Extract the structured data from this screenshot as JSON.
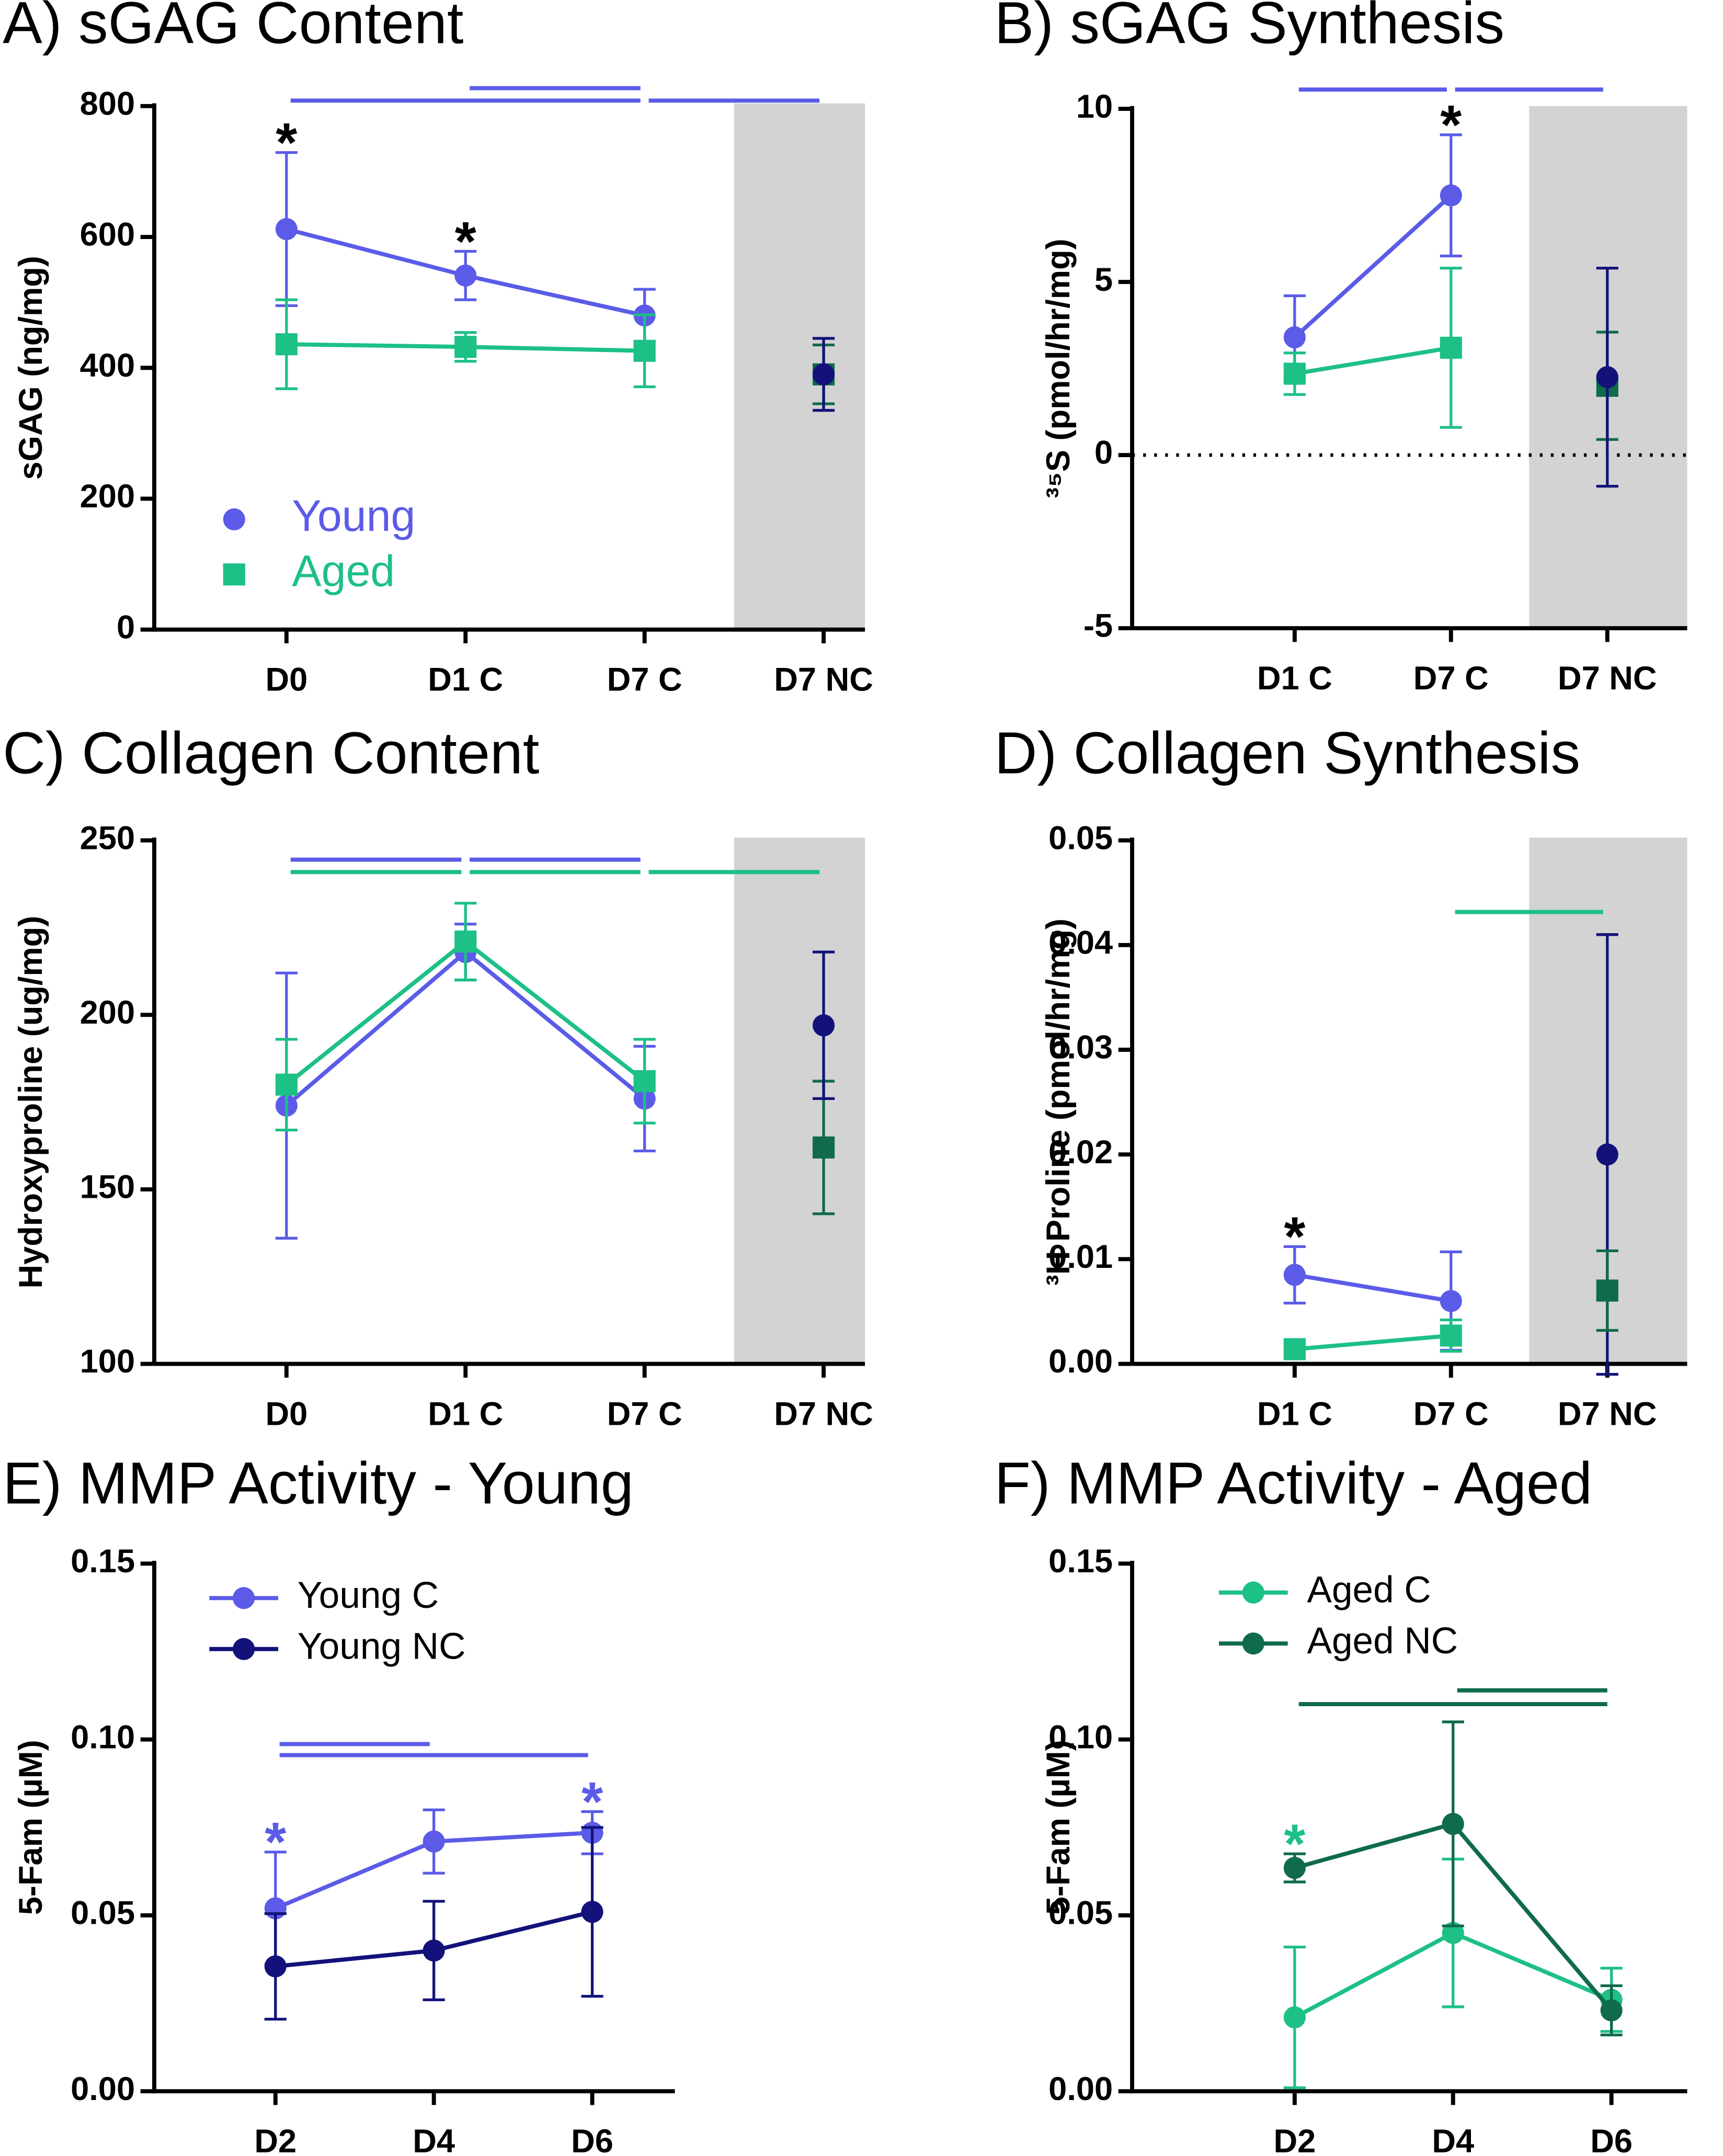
{
  "chart_data": [
    {
      "type": "line",
      "title": "A) sGAG Content",
      "ylabel": "sGAG (ng/mg)",
      "categories": [
        "D0",
        "D1 C",
        "D7 C",
        "D7 NC"
      ],
      "ylim": [
        0,
        800
      ],
      "yticks": [
        0,
        200,
        400,
        600,
        800
      ],
      "shade_last": true,
      "legend": "text",
      "series": [
        {
          "name": "Young",
          "color": "#5b5be8",
          "marker": "circle",
          "values": [
            612,
            541,
            480,
            null
          ],
          "errors": [
            117,
            37,
            40,
            null
          ]
        },
        {
          "name": "Aged",
          "color": "#1dc085",
          "marker": "square",
          "values": [
            436,
            432,
            426,
            null
          ],
          "errors": [
            68,
            22,
            55,
            null
          ]
        },
        {
          "color": "#0f6b4a",
          "marker": "square",
          "values": [
            null,
            null,
            null,
            390
          ],
          "errors": [
            null,
            null,
            null,
            45
          ]
        },
        {
          "color": "#12127a",
          "marker": "circle",
          "values": [
            null,
            null,
            null,
            390
          ],
          "errors": [
            null,
            null,
            null,
            55
          ]
        }
      ],
      "brackets": [
        {
          "from": "D0",
          "to": "D7 C",
          "color": "#5b5be8"
        },
        {
          "from": "D1 C",
          "to": "D7 C",
          "color": "#5b5be8"
        },
        {
          "from": "D7 C",
          "to": "D7 NC",
          "color": "#5b5be8"
        }
      ],
      "annotations": [
        {
          "text": "*",
          "category": "D0",
          "color": "#000000"
        },
        {
          "text": "*",
          "category": "D1 C",
          "color": "#000000"
        }
      ]
    },
    {
      "type": "line",
      "title": "B) sGAG Synthesis",
      "ylabel": "³⁵S (pmol/hr/mg)",
      "categories": [
        "D1 C",
        "D7 C",
        "D7 NC"
      ],
      "ylim": [
        -5,
        10
      ],
      "yticks": [
        -5,
        0,
        5,
        10
      ],
      "shade_last": true,
      "reference_line": 0,
      "series": [
        {
          "color": "#5b5be8",
          "marker": "circle",
          "values": [
            3.4,
            7.5,
            null
          ],
          "errors": [
            1.2,
            1.75,
            null
          ]
        },
        {
          "color": "#1dc085",
          "marker": "square",
          "values": [
            2.35,
            3.1,
            null
          ],
          "errors": [
            0.6,
            2.3,
            null
          ]
        },
        {
          "color": "#0f6b4a",
          "marker": "square",
          "values": [
            null,
            null,
            2.0
          ],
          "errors": [
            null,
            null,
            1.55
          ]
        },
        {
          "color": "#12127a",
          "marker": "circle",
          "values": [
            null,
            null,
            2.25
          ],
          "errors": [
            null,
            null,
            3.15
          ]
        }
      ],
      "brackets": [
        {
          "from": "D1 C",
          "to": "D7 C",
          "color": "#5b5be8"
        },
        {
          "from": "D7 C",
          "to": "D7 NC",
          "color": "#5b5be8"
        }
      ],
      "annotations": [
        {
          "text": "*",
          "category": "D7 C",
          "color": "#000000"
        }
      ]
    },
    {
      "type": "line",
      "title": "C) Collagen Content",
      "ylabel": "Hydroxyproline (ug/mg)",
      "categories": [
        "D0",
        "D1 C",
        "D7 C",
        "D7 NC"
      ],
      "ylim": [
        100,
        250
      ],
      "yticks": [
        100,
        150,
        200,
        250
      ],
      "shade_last": true,
      "series": [
        {
          "color": "#5b5be8",
          "marker": "circle",
          "values": [
            174,
            218,
            176,
            null
          ],
          "errors": [
            38,
            8,
            15,
            null
          ]
        },
        {
          "color": "#1dc085",
          "marker": "square",
          "values": [
            180,
            221,
            181,
            null
          ],
          "errors": [
            13,
            11,
            12,
            null
          ]
        },
        {
          "color": "#0f6b4a",
          "marker": "square",
          "values": [
            null,
            null,
            null,
            162
          ],
          "errors": [
            null,
            null,
            null,
            19
          ]
        },
        {
          "color": "#12127a",
          "marker": "circle",
          "values": [
            null,
            null,
            null,
            197
          ],
          "errors": [
            null,
            null,
            null,
            21
          ]
        }
      ],
      "brackets": [
        {
          "from": "D0",
          "to": "D1 C",
          "color": "#5b5be8"
        },
        {
          "from": "D1 C",
          "to": "D7 C",
          "color": "#5b5be8"
        },
        {
          "from": "D0",
          "to": "D1 C",
          "color": "#1dc085"
        },
        {
          "from": "D1 C",
          "to": "D7 C",
          "color": "#1dc085"
        },
        {
          "from": "D7 C",
          "to": "D7 NC",
          "color": "#1dc085"
        }
      ],
      "annotations": []
    },
    {
      "type": "line",
      "title": "D) Collagen Synthesis",
      "ylabel": "³H Proline (pmol/hr/mg)",
      "categories": [
        "D1 C",
        "D7 C",
        "D7 NC"
      ],
      "ylim": [
        0,
        0.05
      ],
      "yticks": [
        {
          "value": 0,
          "label": "0.00"
        },
        0.01,
        0.02,
        0.03,
        0.04,
        0.05
      ],
      "shade_last": true,
      "series": [
        {
          "color": "#5b5be8",
          "marker": "circle",
          "values": [
            0.0085,
            0.006,
            null
          ],
          "errors": [
            0.0027,
            0.0047,
            null
          ]
        },
        {
          "color": "#1dc085",
          "marker": "square",
          "values": [
            0.0014,
            0.0027,
            null
          ],
          "errors": [
            0.0005,
            0.0015,
            null
          ]
        },
        {
          "color": "#12127a",
          "marker": "circle",
          "values": [
            null,
            null,
            0.02
          ],
          "errors": [
            null,
            null,
            0.021
          ]
        },
        {
          "color": "#0f6b4a",
          "marker": "square",
          "values": [
            null,
            null,
            0.007
          ],
          "errors": [
            null,
            null,
            0.0038
          ]
        }
      ],
      "brackets": [
        {
          "from": "D7 C",
          "to": "D7 NC",
          "color": "#1dc085"
        }
      ],
      "annotations": [
        {
          "text": "*",
          "category": "D1 C",
          "color": "#000000"
        }
      ]
    },
    {
      "type": "line",
      "title": "E) MMP Activity - Young",
      "ylabel": "5-Fam (µM)",
      "categories": [
        "D2",
        "D4",
        "D6"
      ],
      "ylim": [
        0,
        0.15
      ],
      "yticks": [
        {
          "value": 0,
          "label": "0.00"
        },
        0.05,
        {
          "value": 0.1,
          "label": "0.10"
        },
        0.15
      ],
      "legend": "line",
      "series": [
        {
          "name": "Young C",
          "color": "#5b5be8",
          "marker": "circle",
          "values": [
            0.052,
            0.071,
            0.0735
          ],
          "errors": [
            0.016,
            0.009,
            0.006
          ]
        },
        {
          "name": "Young NC",
          "color": "#12127a",
          "marker": "circle",
          "values": [
            0.0355,
            0.04,
            0.051
          ],
          "errors": [
            0.015,
            0.014,
            0.024
          ]
        }
      ],
      "brackets": [
        {
          "from": "D2",
          "to": "D4",
          "color": "#5b5be8"
        },
        {
          "from": "D2",
          "to": "D6",
          "color": "#5b5be8"
        }
      ],
      "annotations": [
        {
          "text": "*",
          "category": "D2",
          "color": "#5b5be8"
        },
        {
          "text": "*",
          "category": "D6",
          "color": "#5b5be8"
        }
      ]
    },
    {
      "type": "line",
      "title": "F) MMP Activity - Aged",
      "ylabel": "5-Fam (µM)",
      "categories": [
        "D2",
        "D4",
        "D6"
      ],
      "ylim": [
        0,
        0.15
      ],
      "yticks": [
        {
          "value": 0,
          "label": "0.00"
        },
        0.05,
        {
          "value": 0.1,
          "label": "0.10"
        },
        0.15
      ],
      "legend": "line",
      "series": [
        {
          "name": "Aged C",
          "color": "#1dc085",
          "marker": "circle",
          "values": [
            0.021,
            0.045,
            0.026
          ],
          "errors": [
            0.02,
            0.021,
            0.009
          ]
        },
        {
          "name": "Aged NC",
          "color": "#0f6b4a",
          "marker": "circle",
          "values": [
            0.0635,
            0.076,
            0.023
          ],
          "errors": [
            0.004,
            0.029,
            0.007
          ]
        }
      ],
      "brackets": [
        {
          "from": "D4",
          "to": "D6",
          "color": "#0f6b4a"
        },
        {
          "from": "D2",
          "to": "D6",
          "color": "#0f6b4a"
        }
      ],
      "annotations": [
        {
          "text": "*",
          "category": "D2",
          "color": "#1dc085"
        }
      ]
    }
  ]
}
